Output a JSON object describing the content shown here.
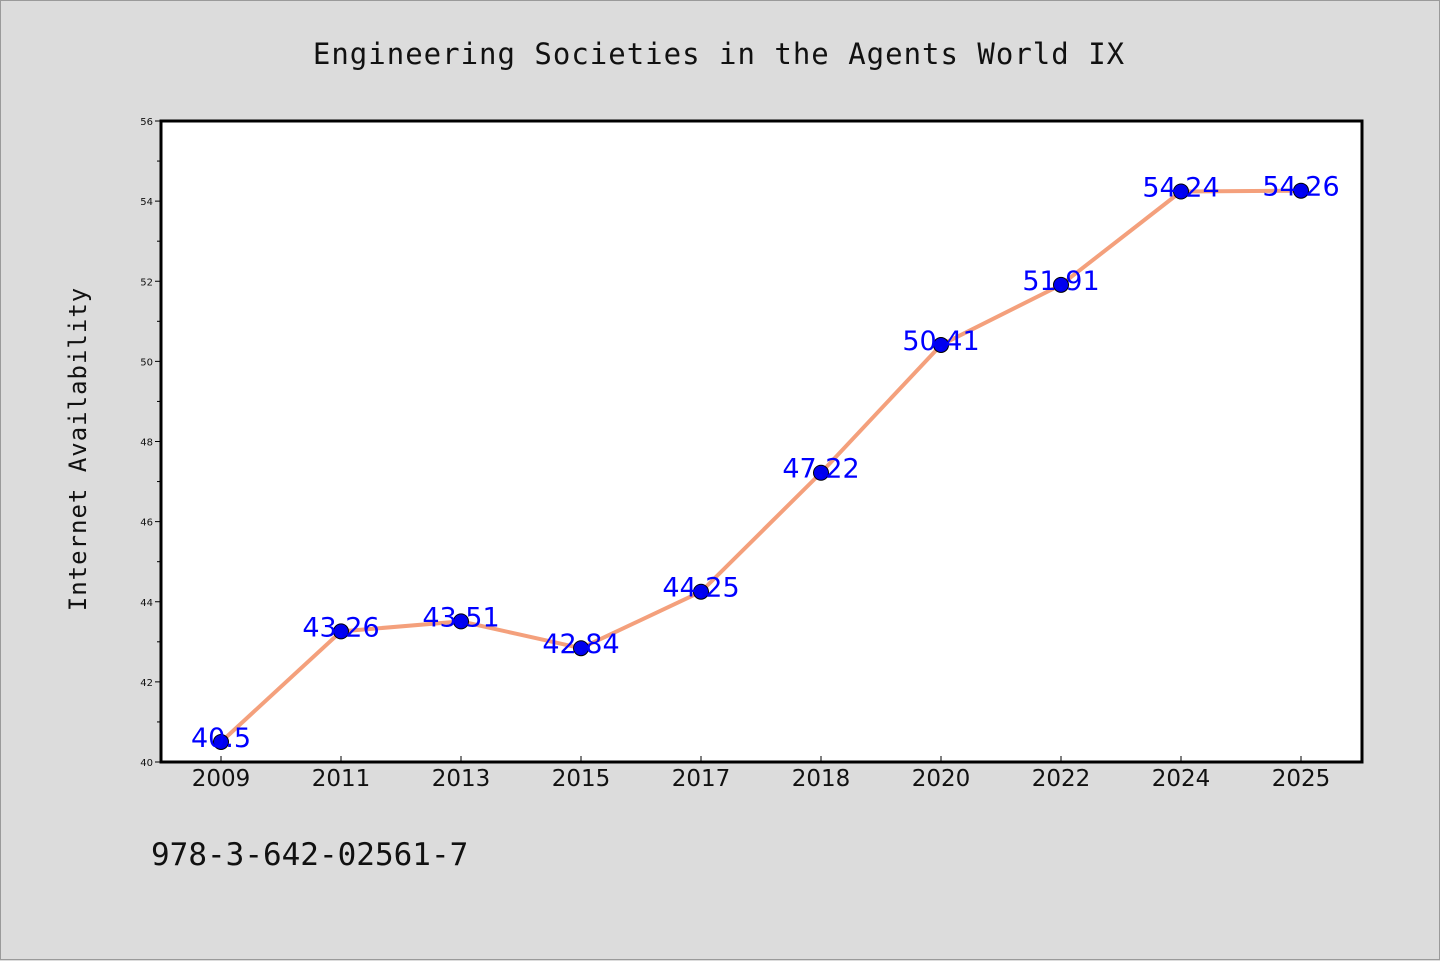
{
  "chart_data": {
    "type": "line",
    "title": "Engineering Societies in the Agents World IX",
    "xlabel": "",
    "ylabel": "Internet Availability",
    "categories": [
      "2009",
      "2011",
      "2013",
      "2015",
      "2017",
      "2018",
      "2020",
      "2022",
      "2024",
      "2025"
    ],
    "values": [
      40.5,
      43.26,
      43.51,
      42.84,
      44.25,
      47.22,
      50.41,
      51.91,
      54.24,
      54.26
    ],
    "data_labels": [
      "40.5",
      "43.26",
      "43.51",
      "42.84",
      "44.25",
      "47.22",
      "50.41",
      "51.91",
      "54.24",
      "54.26"
    ],
    "ylim": [
      40,
      56
    ],
    "y_ticks": [
      "40",
      "42",
      "44",
      "46",
      "48",
      "50",
      "52",
      "54",
      "56"
    ],
    "grid": false,
    "legend": "none",
    "line_color": "#f4a07c",
    "marker_color": "#0000ee",
    "label_color": "#0000ff"
  },
  "footer": {
    "isbn": "978-3-642-02561-7"
  }
}
